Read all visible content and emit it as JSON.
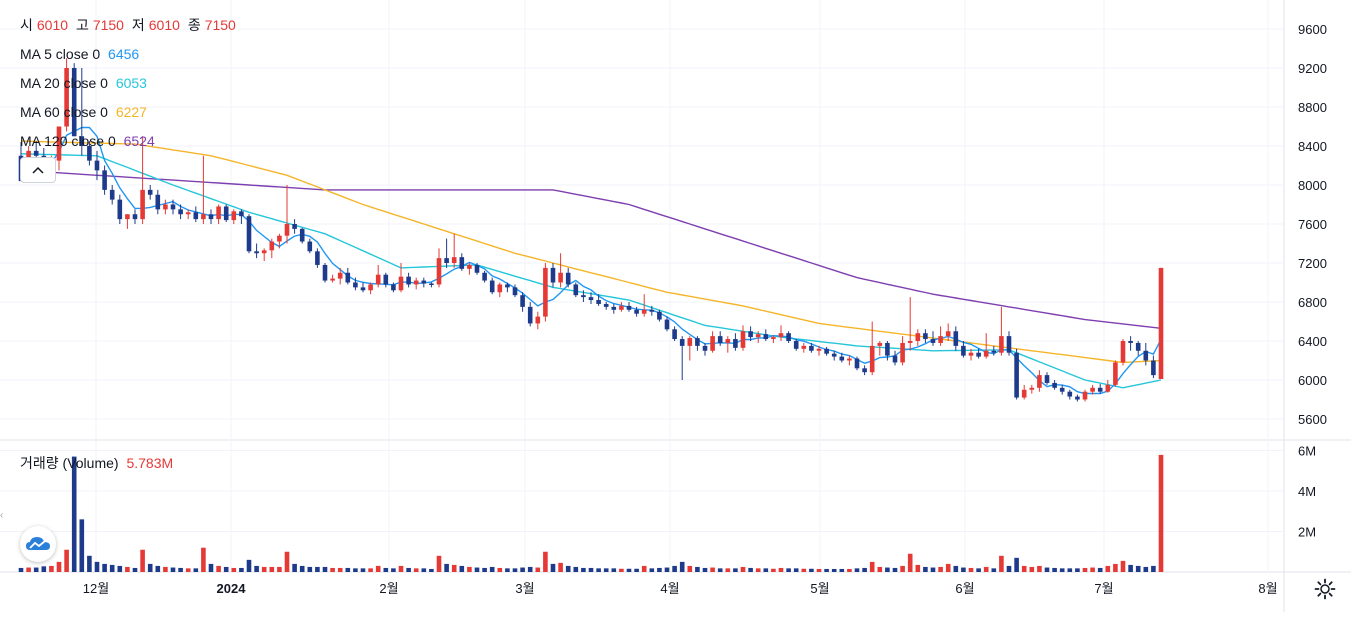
{
  "ohlc": {
    "open_label": "시",
    "open": "6010",
    "high_label": "고",
    "high": "7150",
    "low_label": "저",
    "low": "6010",
    "close_label": "종",
    "close": "7150"
  },
  "indicators": [
    {
      "label": "MA 5 close 0",
      "value": "6456",
      "color": "#2196f3"
    },
    {
      "label": "MA 20 close 0",
      "value": "6053",
      "color": "#26c6da"
    },
    {
      "label": "MA 60 close 0",
      "value": "6227",
      "color": "#f5b52a"
    },
    {
      "label": "MA 120 close 0",
      "value": "6524",
      "color": "#7e3fb0"
    }
  ],
  "volume_legend": {
    "label": "거래량 (Volume)",
    "value": "5.783M"
  },
  "colors": {
    "up": "#e53935",
    "down": "#1e3a8a",
    "grid": "#f0f3fa",
    "axis_text": "#131722"
  },
  "icons": {
    "collapse": "chevron-up-icon",
    "logo": "cloud-chart-logo-icon",
    "settings": "gear-icon",
    "scroll_left": "chevron-left-icon"
  },
  "chart_data": {
    "type": "candlestick",
    "price_axis": {
      "ticks": [
        9600,
        9200,
        8800,
        8400,
        8000,
        7600,
        7200,
        6800,
        6400,
        6000,
        5600
      ]
    },
    "volume_axis": {
      "ticks": [
        "6M",
        "4M",
        "2M"
      ],
      "values": [
        6000000,
        4000000,
        2000000
      ]
    },
    "time_axis": {
      "labels": [
        "12월",
        "2024",
        "2월",
        "3월",
        "4월",
        "5월",
        "6월",
        "7월",
        "8월"
      ]
    },
    "last_bar": {
      "open": 6010,
      "high": 7150,
      "low": 6010,
      "close": 7150,
      "volume_millions": 5.783
    },
    "candles": [
      [
        8300,
        8440,
        8040,
        8040,
        0.2
      ],
      [
        8250,
        8400,
        8200,
        8350,
        0.22
      ],
      [
        8350,
        8450,
        8250,
        8300,
        0.22
      ],
      [
        8300,
        8380,
        8150,
        8200,
        0.28
      ],
      [
        8200,
        8300,
        8100,
        8250,
        0.3
      ],
      [
        8250,
        8600,
        8150,
        8600,
        0.5
      ],
      [
        8600,
        9300,
        8550,
        9200,
        1.1
      ],
      [
        9200,
        9250,
        8500,
        8500,
        5.7
      ],
      [
        8500,
        9200,
        8300,
        8400,
        2.6
      ],
      [
        8400,
        8450,
        8200,
        8250,
        0.8
      ],
      [
        8250,
        8350,
        8050,
        8150,
        0.5
      ],
      [
        8150,
        8200,
        7900,
        7950,
        0.4
      ],
      [
        7950,
        8000,
        7800,
        7850,
        0.35
      ],
      [
        7850,
        7900,
        7600,
        7650,
        0.3
      ],
      [
        7650,
        7700,
        7550,
        7700,
        0.25
      ],
      [
        7700,
        7750,
        7600,
        7650,
        0.2
      ],
      [
        7650,
        8500,
        7600,
        7950,
        1.1
      ],
      [
        7950,
        8000,
        7850,
        7900,
        0.4
      ],
      [
        7900,
        7950,
        7700,
        7750,
        0.3
      ],
      [
        7750,
        7850,
        7700,
        7800,
        0.25
      ],
      [
        7800,
        7850,
        7700,
        7750,
        0.22
      ],
      [
        7750,
        7800,
        7650,
        7700,
        0.2
      ],
      [
        7700,
        7750,
        7650,
        7720,
        0.18
      ],
      [
        7720,
        7780,
        7620,
        7650,
        0.18
      ],
      [
        7650,
        8300,
        7600,
        7700,
        1.2
      ],
      [
        7700,
        7750,
        7600,
        7650,
        0.4
      ],
      [
        7650,
        7800,
        7600,
        7780,
        0.3
      ],
      [
        7780,
        7800,
        7620,
        7640,
        0.25
      ],
      [
        7640,
        7750,
        7600,
        7730,
        0.2
      ],
      [
        7730,
        7750,
        7600,
        7680,
        0.2
      ],
      [
        7680,
        7700,
        7300,
        7320,
        0.6
      ],
      [
        7320,
        7400,
        7250,
        7300,
        0.3
      ],
      [
        7300,
        7350,
        7220,
        7330,
        0.25
      ],
      [
        7330,
        7450,
        7250,
        7420,
        0.25
      ],
      [
        7420,
        7500,
        7350,
        7480,
        0.25
      ],
      [
        7480,
        8000,
        7400,
        7600,
        1.0
      ],
      [
        7600,
        7650,
        7500,
        7550,
        0.4
      ],
      [
        7550,
        7560,
        7400,
        7420,
        0.3
      ],
      [
        7420,
        7450,
        7300,
        7320,
        0.25
      ],
      [
        7320,
        7350,
        7150,
        7180,
        0.25
      ],
      [
        7180,
        7200,
        7000,
        7020,
        0.25
      ],
      [
        7020,
        7080,
        7000,
        7040,
        0.2
      ],
      [
        7040,
        7150,
        6980,
        7100,
        0.2
      ],
      [
        7100,
        7150,
        6980,
        7000,
        0.2
      ],
      [
        7000,
        7050,
        6920,
        6950,
        0.18
      ],
      [
        6950,
        7000,
        6900,
        6920,
        0.18
      ],
      [
        6920,
        7000,
        6880,
        6980,
        0.18
      ],
      [
        6980,
        7180,
        6950,
        7080,
        0.3
      ],
      [
        7080,
        7100,
        6950,
        6980,
        0.2
      ],
      [
        6980,
        7000,
        6900,
        6920,
        0.18
      ],
      [
        6920,
        7200,
        6900,
        7060,
        0.3
      ],
      [
        7060,
        7100,
        6950,
        6980,
        0.2
      ],
      [
        6980,
        7050,
        6930,
        7020,
        0.18
      ],
      [
        7020,
        7050,
        6950,
        6990,
        0.18
      ],
      [
        6990,
        7000,
        6950,
        6980,
        0.15
      ],
      [
        6980,
        7350,
        6950,
        7250,
        0.8
      ],
      [
        7250,
        7450,
        7150,
        7200,
        0.4
      ],
      [
        7200,
        7500,
        7150,
        7260,
        0.35
      ],
      [
        7260,
        7300,
        7120,
        7140,
        0.3
      ],
      [
        7140,
        7200,
        7080,
        7180,
        0.25
      ],
      [
        7180,
        7200,
        7080,
        7100,
        0.22
      ],
      [
        7100,
        7120,
        7000,
        7020,
        0.2
      ],
      [
        7020,
        7050,
        6880,
        6900,
        0.25
      ],
      [
        6900,
        7000,
        6850,
        6980,
        0.2
      ],
      [
        6980,
        7000,
        6900,
        6950,
        0.18
      ],
      [
        6950,
        6980,
        6850,
        6870,
        0.18
      ],
      [
        6870,
        6900,
        6700,
        6750,
        0.22
      ],
      [
        6750,
        6800,
        6550,
        6580,
        0.25
      ],
      [
        6580,
        6700,
        6520,
        6650,
        0.22
      ],
      [
        6650,
        7200,
        6600,
        7150,
        1.0
      ],
      [
        7150,
        7200,
        6950,
        7000,
        0.4
      ],
      [
        7000,
        7300,
        6950,
        7100,
        0.45
      ],
      [
        7100,
        7150,
        6950,
        6980,
        0.3
      ],
      [
        6980,
        7000,
        6850,
        6870,
        0.25
      ],
      [
        6870,
        6920,
        6800,
        6850,
        0.2
      ],
      [
        6850,
        6900,
        6780,
        6820,
        0.2
      ],
      [
        6820,
        6880,
        6760,
        6780,
        0.18
      ],
      [
        6780,
        6800,
        6720,
        6750,
        0.18
      ],
      [
        6750,
        6780,
        6680,
        6720,
        0.18
      ],
      [
        6720,
        6800,
        6700,
        6760,
        0.16
      ],
      [
        6760,
        6800,
        6700,
        6720,
        0.16
      ],
      [
        6720,
        6750,
        6650,
        6680,
        0.16
      ],
      [
        6680,
        6880,
        6650,
        6720,
        0.3
      ],
      [
        6720,
        6760,
        6660,
        6700,
        0.18
      ],
      [
        6700,
        6720,
        6600,
        6620,
        0.2
      ],
      [
        6620,
        6650,
        6500,
        6520,
        0.22
      ],
      [
        6520,
        6550,
        6400,
        6420,
        0.3
      ],
      [
        6420,
        6450,
        6000,
        6350,
        0.5
      ],
      [
        6350,
        6450,
        6200,
        6430,
        0.3
      ],
      [
        6430,
        6450,
        6300,
        6350,
        0.25
      ],
      [
        6350,
        6380,
        6250,
        6300,
        0.2
      ],
      [
        6300,
        6500,
        6280,
        6450,
        0.22
      ],
      [
        6450,
        6500,
        6350,
        6380,
        0.18
      ],
      [
        6380,
        6450,
        6280,
        6420,
        0.18
      ],
      [
        6420,
        6480,
        6300,
        6330,
        0.18
      ],
      [
        6330,
        6560,
        6300,
        6500,
        0.25
      ],
      [
        6500,
        6550,
        6400,
        6440,
        0.2
      ],
      [
        6440,
        6500,
        6380,
        6470,
        0.18
      ],
      [
        6470,
        6520,
        6400,
        6420,
        0.18
      ],
      [
        6420,
        6460,
        6380,
        6440,
        0.16
      ],
      [
        6440,
        6560,
        6400,
        6480,
        0.2
      ],
      [
        6480,
        6500,
        6380,
        6400,
        0.18
      ],
      [
        6400,
        6420,
        6300,
        6320,
        0.18
      ],
      [
        6320,
        6380,
        6280,
        6350,
        0.16
      ],
      [
        6350,
        6380,
        6280,
        6300,
        0.16
      ],
      [
        6300,
        6350,
        6250,
        6320,
        0.15
      ],
      [
        6320,
        6340,
        6250,
        6270,
        0.15
      ],
      [
        6270,
        6300,
        6200,
        6240,
        0.15
      ],
      [
        6240,
        6280,
        6180,
        6200,
        0.15
      ],
      [
        6200,
        6250,
        6150,
        6220,
        0.15
      ],
      [
        6220,
        6240,
        6100,
        6120,
        0.18
      ],
      [
        6120,
        6150,
        6050,
        6080,
        0.2
      ],
      [
        6080,
        6600,
        6050,
        6350,
        0.5
      ],
      [
        6350,
        6400,
        6250,
        6380,
        0.25
      ],
      [
        6380,
        6400,
        6200,
        6250,
        0.22
      ],
      [
        6250,
        6300,
        6150,
        6180,
        0.2
      ],
      [
        6180,
        6450,
        6150,
        6380,
        0.3
      ],
      [
        6380,
        6850,
        6300,
        6400,
        0.9
      ],
      [
        6400,
        6520,
        6350,
        6480,
        0.35
      ],
      [
        6480,
        6520,
        6380,
        6420,
        0.25
      ],
      [
        6420,
        6500,
        6350,
        6380,
        0.22
      ],
      [
        6380,
        6550,
        6350,
        6450,
        0.25
      ],
      [
        6450,
        6580,
        6400,
        6500,
        0.4
      ],
      [
        6500,
        6550,
        6300,
        6350,
        0.3
      ],
      [
        6350,
        6400,
        6230,
        6250,
        0.22
      ],
      [
        6250,
        6320,
        6200,
        6280,
        0.2
      ],
      [
        6280,
        6320,
        6220,
        6240,
        0.18
      ],
      [
        6240,
        6480,
        6220,
        6300,
        0.25
      ],
      [
        6300,
        6350,
        6250,
        6280,
        0.18
      ],
      [
        6280,
        6750,
        6250,
        6450,
        0.8
      ],
      [
        6450,
        6500,
        6250,
        6280,
        0.3
      ],
      [
        6280,
        6320,
        5800,
        5820,
        0.7
      ],
      [
        5820,
        5950,
        5800,
        5900,
        0.3
      ],
      [
        5900,
        5950,
        5860,
        5920,
        0.25
      ],
      [
        5920,
        6100,
        5880,
        6050,
        0.3
      ],
      [
        6050,
        6080,
        5950,
        5970,
        0.22
      ],
      [
        5970,
        6000,
        5900,
        5920,
        0.2
      ],
      [
        5920,
        5950,
        5850,
        5880,
        0.18
      ],
      [
        5880,
        5900,
        5800,
        5830,
        0.18
      ],
      [
        5830,
        5850,
        5780,
        5800,
        0.18
      ],
      [
        5800,
        5900,
        5780,
        5880,
        0.2
      ],
      [
        5880,
        5950,
        5850,
        5920,
        0.22
      ],
      [
        5920,
        5960,
        5860,
        5880,
        0.2
      ],
      [
        5880,
        6000,
        5870,
        5950,
        0.3
      ],
      [
        5950,
        6200,
        5930,
        6180,
        0.4
      ],
      [
        6180,
        6420,
        6150,
        6400,
        0.55
      ],
      [
        6400,
        6450,
        6300,
        6380,
        0.35
      ],
      [
        6380,
        6400,
        6250,
        6300,
        0.3
      ],
      [
        6300,
        6380,
        6150,
        6200,
        0.25
      ],
      [
        6200,
        6250,
        6020,
        6050,
        0.3
      ],
      [
        6010,
        7150,
        6010,
        7150,
        5.783
      ]
    ],
    "series": [
      {
        "name": "MA 5 close 0",
        "last": 6456
      },
      {
        "name": "MA 20 close 0",
        "last": 6053
      },
      {
        "name": "MA 60 close 0",
        "last": 6227
      },
      {
        "name": "MA 120 close 0",
        "last": 6524
      },
      {
        "name": "거래량 (Volume)",
        "last": "5.783M"
      }
    ],
    "ma20": [
      [
        0,
        8320
      ],
      [
        10,
        8300
      ],
      [
        20,
        8000
      ],
      [
        30,
        7720
      ],
      [
        40,
        7500
      ],
      [
        50,
        7150
      ],
      [
        60,
        7180
      ],
      [
        70,
        6950
      ],
      [
        80,
        6820
      ],
      [
        90,
        6560
      ],
      [
        100,
        6440
      ],
      [
        110,
        6350
      ],
      [
        120,
        6300
      ],
      [
        130,
        6310
      ],
      [
        140,
        6000
      ],
      [
        145,
        5920
      ],
      [
        150,
        6000
      ],
      [
        156,
        6053
      ]
    ],
    "ma60": [
      [
        0,
        8450
      ],
      [
        15,
        8420
      ],
      [
        25,
        8300
      ],
      [
        35,
        8100
      ],
      [
        45,
        7800
      ],
      [
        55,
        7550
      ],
      [
        65,
        7300
      ],
      [
        75,
        7100
      ],
      [
        85,
        6900
      ],
      [
        95,
        6760
      ],
      [
        105,
        6580
      ],
      [
        115,
        6480
      ],
      [
        125,
        6380
      ],
      [
        135,
        6280
      ],
      [
        145,
        6180
      ],
      [
        150,
        6200
      ],
      [
        156,
        6227
      ]
    ],
    "ma120": [
      [
        0,
        8150
      ],
      [
        20,
        8050
      ],
      [
        40,
        7950
      ],
      [
        60,
        7950
      ],
      [
        70,
        7950
      ],
      [
        80,
        7800
      ],
      [
        90,
        7550
      ],
      [
        100,
        7300
      ],
      [
        110,
        7050
      ],
      [
        120,
        6880
      ],
      [
        130,
        6750
      ],
      [
        140,
        6620
      ],
      [
        150,
        6530
      ],
      [
        156,
        6524
      ]
    ]
  }
}
